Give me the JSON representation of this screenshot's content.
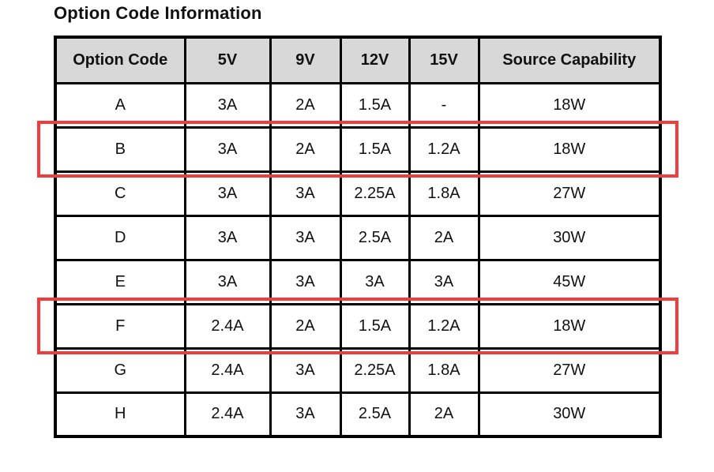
{
  "title": "Option Code Information",
  "table": {
    "columns": [
      "Option Code",
      "5V",
      "9V",
      "12V",
      "15V",
      "Source Capability"
    ],
    "rows": [
      {
        "code": "A",
        "values": [
          "3A",
          "2A",
          "1.5A",
          "-",
          "18W"
        ]
      },
      {
        "code": "B",
        "values": [
          "3A",
          "2A",
          "1.5A",
          "1.2A",
          "18W"
        ]
      },
      {
        "code": "C",
        "values": [
          "3A",
          "3A",
          "2.25A",
          "1.8A",
          "27W"
        ]
      },
      {
        "code": "D",
        "values": [
          "3A",
          "3A",
          "2.5A",
          "2A",
          "30W"
        ]
      },
      {
        "code": "E",
        "values": [
          "3A",
          "3A",
          "3A",
          "3A",
          "45W"
        ]
      },
      {
        "code": "F",
        "values": [
          "2.4A",
          "2A",
          "1.5A",
          "1.2A",
          "18W"
        ]
      },
      {
        "code": "G",
        "values": [
          "2.4A",
          "3A",
          "2.25A",
          "1.8A",
          "27W"
        ]
      },
      {
        "code": "H",
        "values": [
          "2.4A",
          "3A",
          "2.5A",
          "2A",
          "30W"
        ]
      }
    ],
    "header_background": "#d8d8d8",
    "border_color": "#000000"
  },
  "annotations": {
    "highlighted_rows": [
      "B",
      "F"
    ],
    "highlight_color": "#f23b3b"
  }
}
